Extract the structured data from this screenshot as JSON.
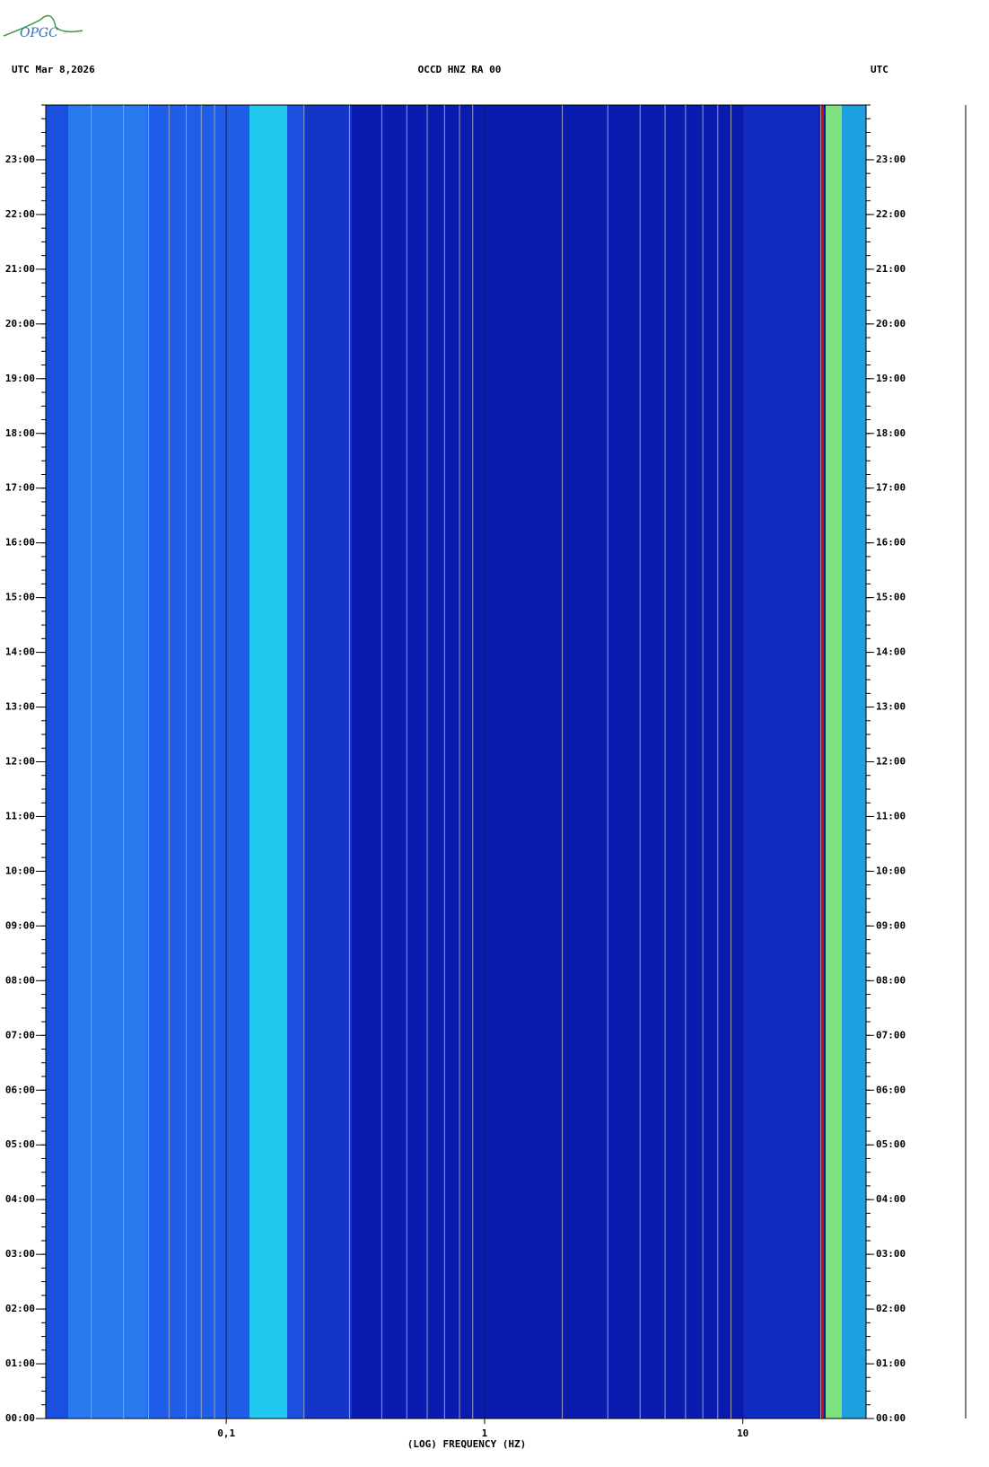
{
  "logo": "OPGC",
  "chart_data": {
    "type": "spectrogram",
    "title": "OCCD HNZ RA 00",
    "left_header": "UTC  Mar 8,2026",
    "right_header": "UTC",
    "xlabel": "(LOG) FREQUENCY (HZ)",
    "xscale": "log",
    "xlim": [
      0.02,
      30
    ],
    "xticks": [
      {
        "value": 0.1,
        "label": "0,1"
      },
      1,
      10
    ],
    "ylim": [
      0,
      24
    ],
    "yticks": [
      {
        "value": 0,
        "label": "00:00"
      },
      {
        "value": 1,
        "label": "01:00"
      },
      {
        "value": 2,
        "label": "02:00"
      },
      {
        "value": 3,
        "label": "03:00"
      },
      {
        "value": 4,
        "label": "04:00"
      },
      {
        "value": 5,
        "label": "05:00"
      },
      {
        "value": 6,
        "label": "06:00"
      },
      {
        "value": 7,
        "label": "07:00"
      },
      {
        "value": 8,
        "label": "08:00"
      },
      {
        "value": 9,
        "label": "09:00"
      },
      {
        "value": 10,
        "label": "10:00"
      },
      {
        "value": 11,
        "label": "11:00"
      },
      {
        "value": 12,
        "label": "12:00"
      },
      {
        "value": 13,
        "label": "13:00"
      },
      {
        "value": 14,
        "label": "14:00"
      },
      {
        "value": 15,
        "label": "15:00"
      },
      {
        "value": 16,
        "label": "16:00"
      },
      {
        "value": 17,
        "label": "17:00"
      },
      {
        "value": 18,
        "label": "18:00"
      },
      {
        "value": 19,
        "label": "19:00"
      },
      {
        "value": 20,
        "label": "20:00"
      },
      {
        "value": 21,
        "label": "21:00"
      },
      {
        "value": 22,
        "label": "22:00"
      },
      {
        "value": 23,
        "label": "23:00"
      }
    ],
    "grid": true
  }
}
